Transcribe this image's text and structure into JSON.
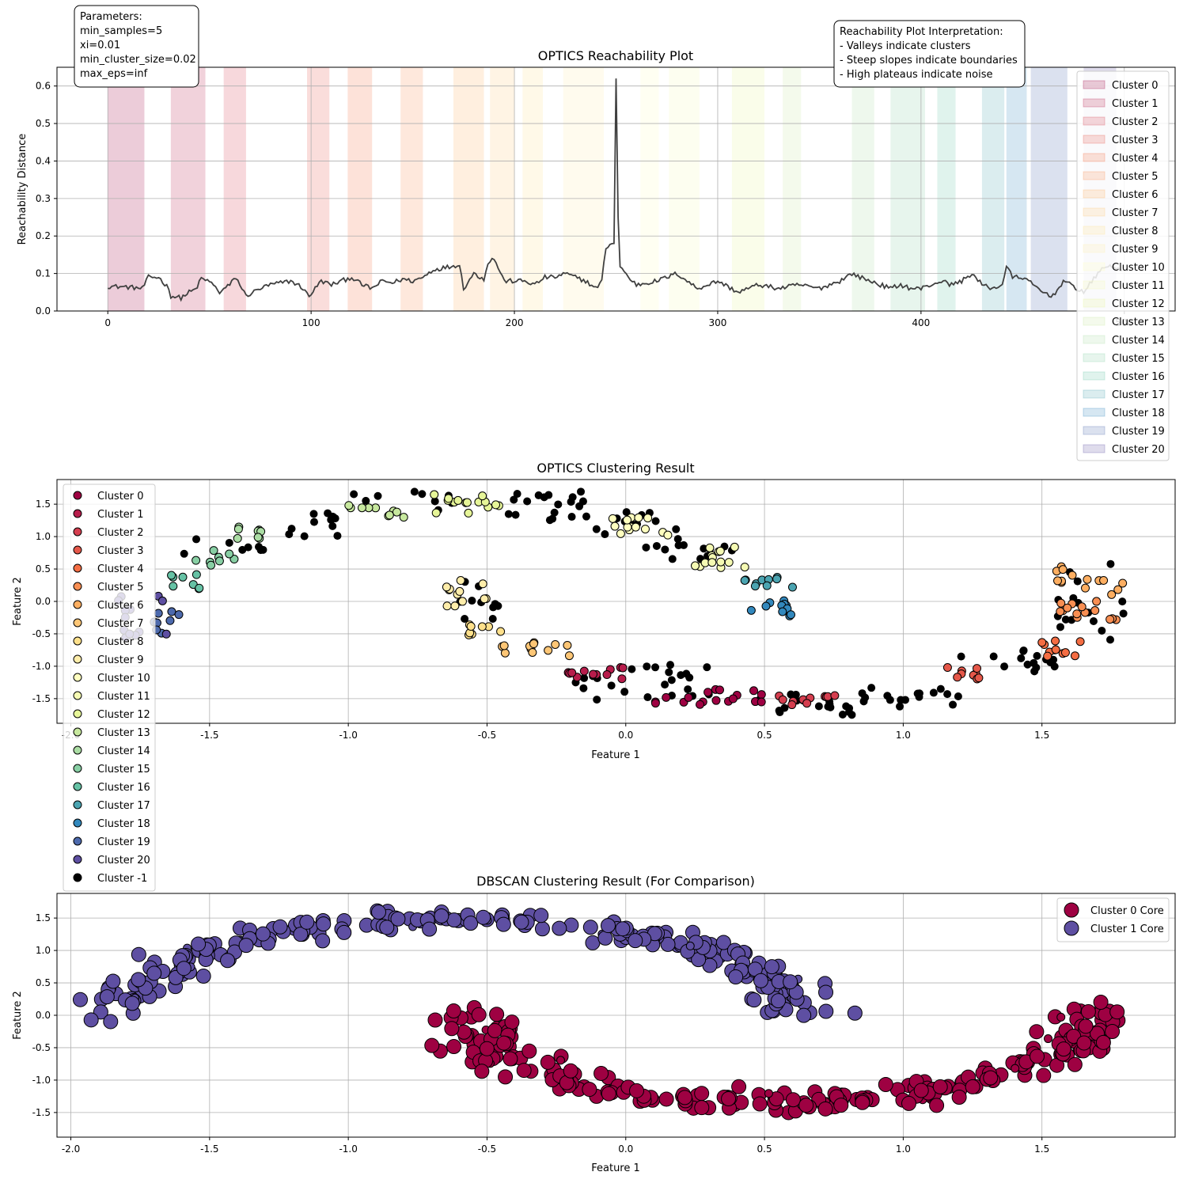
{
  "figure": {
    "params_box": [
      "Parameters:",
      "min_samples=5",
      "xi=0.01",
      "min_cluster_size=0.02",
      "max_eps=inf"
    ],
    "interp_box": [
      "Reachability Plot Interpretation:",
      "- Valleys indicate clusters",
      "- Steep slopes indicate boundaries",
      "- High plateaus indicate noise"
    ]
  },
  "chart_data": [
    {
      "type": "line",
      "title": "OPTICS Reachability Plot",
      "xlabel": "",
      "ylabel": "Reachability Distance",
      "xlim": [
        -25,
        525
      ],
      "ylim": [
        0,
        0.65
      ],
      "xticks": [
        0,
        100,
        200,
        300,
        400,
        500
      ],
      "yticks": [
        0.0,
        0.1,
        0.2,
        0.3,
        0.4,
        0.5,
        0.6
      ],
      "grid": true,
      "legend": "right",
      "n_points": 500,
      "line_color": "#404040",
      "series": [
        {
          "x": [
            0,
            10,
            17,
            20,
            25,
            30,
            31,
            36,
            40,
            44,
            45,
            50,
            55,
            60,
            63,
            68,
            75,
            80,
            90,
            95,
            99,
            105,
            110,
            115,
            120,
            125,
            130,
            135,
            140,
            145,
            150,
            155,
            160,
            165,
            170,
            173,
            175,
            180,
            185,
            187,
            190,
            195,
            200,
            205,
            210,
            215,
            220,
            225,
            230,
            235,
            240,
            243,
            245,
            248,
            249,
            250,
            251,
            252,
            256,
            260,
            270,
            280,
            290,
            300,
            310,
            320,
            330,
            340,
            350,
            360,
            366,
            370,
            380,
            385,
            390,
            395,
            400,
            405,
            410,
            415,
            420,
            425,
            430,
            435,
            440,
            442,
            445,
            450,
            455,
            460,
            465,
            470,
            480,
            490,
            500
          ],
          "y": [
            0.066,
            0.064,
            0.06,
            0.09,
            0.09,
            0.06,
            0.04,
            0.035,
            0.05,
            0.06,
            0.085,
            0.08,
            0.05,
            0.07,
            0.09,
            0.04,
            0.06,
            0.07,
            0.08,
            0.065,
            0.04,
            0.08,
            0.07,
            0.08,
            0.09,
            0.07,
            0.06,
            0.08,
            0.075,
            0.085,
            0.08,
            0.09,
            0.11,
            0.115,
            0.12,
            0.125,
            0.06,
            0.1,
            0.085,
            0.13,
            0.14,
            0.08,
            0.08,
            0.08,
            0.07,
            0.09,
            0.09,
            0.1,
            0.09,
            0.08,
            0.06,
            0.08,
            0.17,
            0.18,
            0.18,
            0.62,
            0.25,
            0.12,
            0.09,
            0.07,
            0.08,
            0.1,
            0.06,
            0.08,
            0.05,
            0.07,
            0.06,
            0.07,
            0.06,
            0.08,
            0.1,
            0.09,
            0.07,
            0.06,
            0.07,
            0.06,
            0.06,
            0.07,
            0.08,
            0.07,
            0.08,
            0.1,
            0.07,
            0.06,
            0.07,
            0.12,
            0.09,
            0.09,
            0.07,
            0.05,
            0.04,
            0.08,
            0.05,
            0.12,
            0.11
          ]
        }
      ],
      "cluster_bands": [
        {
          "name": "Cluster 0",
          "start": 0,
          "end": 18,
          "color": "#9e0142"
        },
        {
          "name": "Cluster 1",
          "start": 31,
          "end": 48,
          "color": "#b71c4b"
        },
        {
          "name": "Cluster 2",
          "start": 57,
          "end": 68,
          "color": "#d53e4f"
        },
        {
          "name": "Cluster 3",
          "start": 98,
          "end": 109,
          "color": "#e55749"
        },
        {
          "name": "Cluster 4",
          "start": 118,
          "end": 130,
          "color": "#f46d43"
        },
        {
          "name": "Cluster 5",
          "start": 144,
          "end": 155,
          "color": "#f88e52"
        },
        {
          "name": "Cluster 6",
          "start": 170,
          "end": 185,
          "color": "#fdae61"
        },
        {
          "name": "Cluster 7",
          "start": 188,
          "end": 200,
          "color": "#fdc676"
        },
        {
          "name": "Cluster 8",
          "start": 204,
          "end": 214,
          "color": "#fee08b"
        },
        {
          "name": "Cluster 9",
          "start": 224,
          "end": 244,
          "color": "#feedaa"
        },
        {
          "name": "Cluster 10",
          "start": 262,
          "end": 271,
          "color": "#ffffbf"
        },
        {
          "name": "Cluster 11",
          "start": 276,
          "end": 291,
          "color": "#f5fab3"
        },
        {
          "name": "Cluster 12",
          "start": 307,
          "end": 323,
          "color": "#e6f598"
        },
        {
          "name": "Cluster 13",
          "start": 332,
          "end": 341,
          "color": "#c7e89e"
        },
        {
          "name": "Cluster 14",
          "start": 366,
          "end": 377,
          "color": "#abdda4"
        },
        {
          "name": "Cluster 15",
          "start": 385,
          "end": 402,
          "color": "#88cfa4"
        },
        {
          "name": "Cluster 16",
          "start": 408,
          "end": 417,
          "color": "#66c2a5"
        },
        {
          "name": "Cluster 17",
          "start": 430,
          "end": 441,
          "color": "#4ba4b1"
        },
        {
          "name": "Cluster 18",
          "start": 442,
          "end": 452,
          "color": "#3288bd"
        },
        {
          "name": "Cluster 19",
          "start": 454,
          "end": 472,
          "color": "#4d6aad"
        },
        {
          "name": "Cluster 20",
          "start": 480,
          "end": 496,
          "color": "#5e4fa2"
        }
      ]
    },
    {
      "type": "scatter",
      "title": "OPTICS Clustering Result",
      "xlabel": "Feature 1",
      "ylabel": "Feature 2",
      "xlim": [
        -2.05,
        1.98
      ],
      "ylim": [
        -1.88,
        1.88
      ],
      "xticks": [
        -2.0,
        -1.5,
        -1.0,
        -0.5,
        0.0,
        0.5,
        1.0,
        1.5
      ],
      "yticks": [
        -1.5,
        -1.0,
        -0.5,
        0.0,
        0.5,
        1.0,
        1.5
      ],
      "grid": true,
      "legend": "upper-left",
      "legend_entries": [
        "Cluster 0",
        "Cluster 1",
        "Cluster 2",
        "Cluster 3",
        "Cluster 4",
        "Cluster 5",
        "Cluster 6",
        "Cluster 7",
        "Cluster 8",
        "Cluster 9",
        "Cluster 10",
        "Cluster 11",
        "Cluster 12",
        "Cluster 13",
        "Cluster 14",
        "Cluster 15",
        "Cluster 16",
        "Cluster 17",
        "Cluster 18",
        "Cluster 19",
        "Cluster 20",
        "Cluster -1"
      ],
      "noise_color": "#000000",
      "regions": [
        {
          "cluster": 0,
          "x": [
            0.1,
            0.5
          ],
          "y": [
            -1.6,
            -1.35
          ],
          "n": 18
        },
        {
          "cluster": 1,
          "x": [
            -0.22,
            0.0
          ],
          "y": [
            -1.2,
            -1.0
          ],
          "n": 12
        },
        {
          "cluster": 2,
          "x": [
            0.55,
            0.8
          ],
          "y": [
            -1.6,
            -1.45
          ],
          "n": 12
        },
        {
          "cluster": 3,
          "x": [
            1.15,
            1.3
          ],
          "y": [
            -1.2,
            -1.0
          ],
          "n": 9
        },
        {
          "cluster": 4,
          "x": [
            1.5,
            1.65
          ],
          "y": [
            -0.85,
            -0.6
          ],
          "n": 10
        },
        {
          "cluster": 5,
          "x": [
            1.55,
            1.8
          ],
          "y": [
            -0.3,
            0.1
          ],
          "n": 14
        },
        {
          "cluster": 6,
          "x": [
            1.55,
            1.8
          ],
          "y": [
            0.1,
            0.55
          ],
          "n": 14
        },
        {
          "cluster": 7,
          "x": [
            -0.45,
            -0.2
          ],
          "y": [
            -0.85,
            -0.55
          ],
          "n": 12
        },
        {
          "cluster": 8,
          "x": [
            -0.6,
            -0.45
          ],
          "y": [
            -0.55,
            -0.35
          ],
          "n": 8
        },
        {
          "cluster": 9,
          "x": [
            -0.65,
            -0.45
          ],
          "y": [
            -0.1,
            0.38
          ],
          "n": 12
        },
        {
          "cluster": 10,
          "x": [
            -0.05,
            0.2
          ],
          "y": [
            1.0,
            1.3
          ],
          "n": 14
        },
        {
          "cluster": 11,
          "x": [
            0.2,
            0.45
          ],
          "y": [
            0.5,
            0.85
          ],
          "n": 14
        },
        {
          "cluster": 12,
          "x": [
            -0.7,
            -0.45
          ],
          "y": [
            1.35,
            1.65
          ],
          "n": 15
        },
        {
          "cluster": 13,
          "x": [
            -1.0,
            -0.8
          ],
          "y": [
            1.28,
            1.5
          ],
          "n": 10
        },
        {
          "cluster": 14,
          "x": [
            -1.4,
            -1.3
          ],
          "y": [
            0.95,
            1.15
          ],
          "n": 8
        },
        {
          "cluster": 15,
          "x": [
            -1.55,
            -1.4
          ],
          "y": [
            0.55,
            0.8
          ],
          "n": 8
        },
        {
          "cluster": 16,
          "x": [
            -1.65,
            -1.52
          ],
          "y": [
            0.15,
            0.45
          ],
          "n": 8
        },
        {
          "cluster": 17,
          "x": [
            0.42,
            0.62
          ],
          "y": [
            0.15,
            0.45
          ],
          "n": 10
        },
        {
          "cluster": 18,
          "x": [
            0.45,
            0.65
          ],
          "y": [
            -0.3,
            0.05
          ],
          "n": 12
        },
        {
          "cluster": 19,
          "x": [
            -1.72,
            -1.6
          ],
          "y": [
            -0.5,
            -0.15
          ],
          "n": 8
        },
        {
          "cluster": 20,
          "x": [
            -1.85,
            -1.65
          ],
          "y": [
            -0.6,
            0.1
          ],
          "n": 14
        }
      ],
      "noise_regions": [
        {
          "x": [
            -1.6,
            -1.3
          ],
          "y": [
            0.7,
            1.0
          ],
          "n": 8
        },
        {
          "x": [
            -1.25,
            -1.0
          ],
          "y": [
            1.0,
            1.4
          ],
          "n": 12
        },
        {
          "x": [
            -1.0,
            -0.6
          ],
          "y": [
            1.4,
            1.7
          ],
          "n": 10
        },
        {
          "x": [
            -0.45,
            -0.15
          ],
          "y": [
            1.25,
            1.7
          ],
          "n": 18
        },
        {
          "x": [
            -0.15,
            0.2
          ],
          "y": [
            1.0,
            1.4
          ],
          "n": 12
        },
        {
          "x": [
            0.05,
            0.4
          ],
          "y": [
            0.6,
            1.0
          ],
          "n": 14
        },
        {
          "x": [
            -0.6,
            -0.45
          ],
          "y": [
            -0.35,
            0.55
          ],
          "n": 10
        },
        {
          "x": [
            -0.25,
            0.3
          ],
          "y": [
            -1.55,
            -0.95
          ],
          "n": 24
        },
        {
          "x": [
            0.45,
            1.0
          ],
          "y": [
            -1.75,
            -1.4
          ],
          "n": 20
        },
        {
          "x": [
            0.85,
            1.2
          ],
          "y": [
            -1.6,
            -1.3
          ],
          "n": 14
        },
        {
          "x": [
            1.2,
            1.55
          ],
          "y": [
            -1.1,
            -0.75
          ],
          "n": 16
        },
        {
          "x": [
            1.55,
            1.82
          ],
          "y": [
            -0.6,
            0.6
          ],
          "n": 16
        }
      ]
    },
    {
      "type": "scatter",
      "title": "DBSCAN Clustering Result (For Comparison)",
      "xlabel": "Feature 1",
      "ylabel": "Feature 2",
      "xlim": [
        -2.05,
        1.98
      ],
      "ylim": [
        -1.88,
        1.88
      ],
      "xticks": [
        -2.0,
        -1.5,
        -1.0,
        -0.5,
        0.0,
        0.5,
        1.0,
        1.5
      ],
      "yticks": [
        -1.5,
        -1.0,
        -0.5,
        0.0,
        0.5,
        1.0,
        1.5
      ],
      "grid": true,
      "legend": "upper-right",
      "series": [
        {
          "name": "Cluster 0 Core",
          "color": "#9e0142",
          "shape": "lower-moon"
        },
        {
          "name": "Cluster 1 Core",
          "color": "#5e4fa2",
          "shape": "upper-moon"
        }
      ]
    }
  ]
}
